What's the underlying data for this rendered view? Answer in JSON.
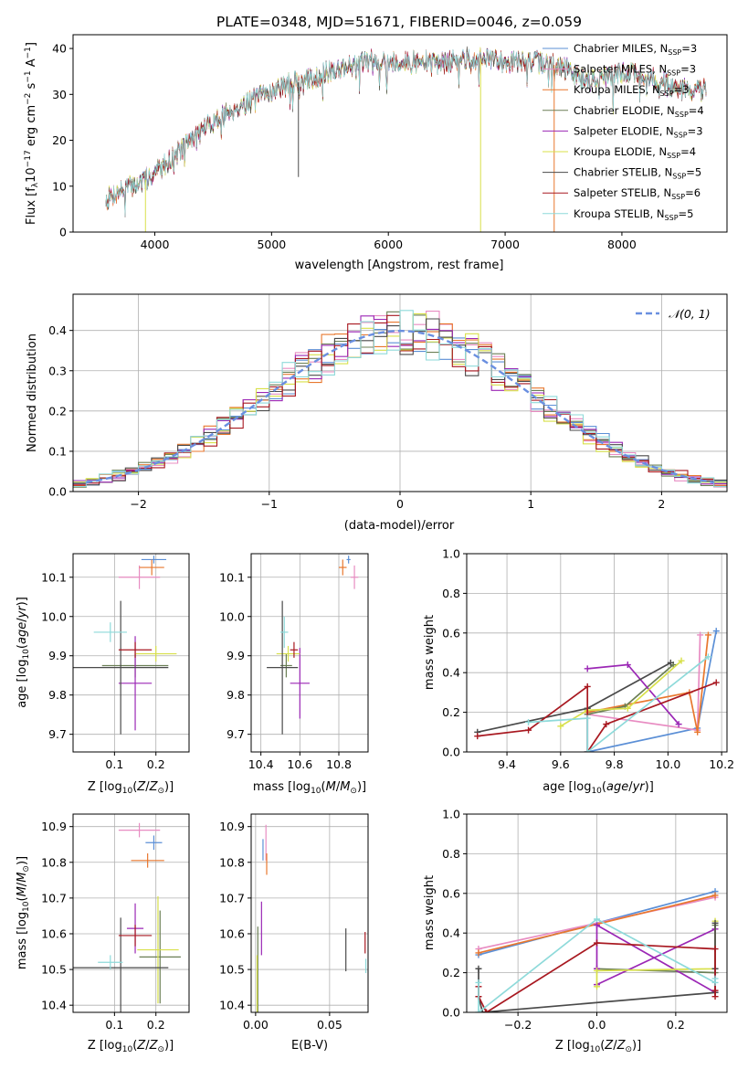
{
  "title": "PLATE=0348, MJD=51671, FIBERID=0046, z=0.059",
  "colors": {
    "chabrier_miles": "#5b8fd6",
    "salpeter_miles": "#e88cc2",
    "kroupa_miles": "#e8772e",
    "chabrier_elodie": "#6b7f55",
    "salpeter_elodie": "#9b27b5",
    "kroupa_elodie": "#d8e04a",
    "chabrier_stelib": "#4a4a4a",
    "salpeter_stelib": "#a81820",
    "kroupa_stelib": "#8edada",
    "normal": "#6a8fe0"
  },
  "legend": {
    "spectrum": [
      {
        "key": "chabrier_miles",
        "prefix": "Chabrier MILES, N",
        "sub": "SSP",
        "value": "=3"
      },
      {
        "key": "salpeter_miles",
        "prefix": "Salpeter MILES, N",
        "sub": "SSP",
        "value": "=3"
      },
      {
        "key": "kroupa_miles",
        "prefix": "Kroupa MILES, N",
        "sub": "SSP",
        "value": "=3"
      },
      {
        "key": "chabrier_elodie",
        "prefix": "Chabrier ELODIE, N",
        "sub": "SSP",
        "value": "=4"
      },
      {
        "key": "salpeter_elodie",
        "prefix": "Salpeter ELODIE, N",
        "sub": "SSP",
        "value": "=3"
      },
      {
        "key": "kroupa_elodie",
        "prefix": "Kroupa ELODIE, N",
        "sub": "SSP",
        "value": "=4"
      },
      {
        "key": "chabrier_stelib",
        "prefix": "Chabrier STELIB, N",
        "sub": "SSP",
        "value": "=5"
      },
      {
        "key": "salpeter_stelib",
        "prefix": "Salpeter STELIB, N",
        "sub": "SSP",
        "value": "=6"
      },
      {
        "key": "kroupa_stelib",
        "prefix": "Kroupa STELIB, N",
        "sub": "SSP",
        "value": "=5"
      }
    ],
    "normal": "𝒩(0, 1)"
  },
  "chart_data": [
    {
      "id": "spectrum",
      "type": "line",
      "xlabel": "wavelength [Angstrom, rest frame]",
      "ylabel": "Flux [f_λ 10^-17 erg cm^-2 s^-1 A^-1]",
      "xlim": [
        3300,
        8900
      ],
      "ylim": [
        0,
        43
      ],
      "xticks": [
        4000,
        5000,
        6000,
        7000,
        8000
      ],
      "yticks": [
        0,
        10,
        20,
        30,
        40
      ],
      "continuum": {
        "x": [
          3580,
          3700,
          3900,
          4100,
          4300,
          4500,
          4700,
          4900,
          5100,
          5300,
          5500,
          5700,
          5900,
          6100,
          6300,
          6500,
          6700,
          6900,
          7100,
          7300,
          7500,
          7700,
          7900,
          8100,
          8300,
          8500,
          8700
        ],
        "y": [
          7,
          9,
          11,
          15,
          20,
          24,
          27,
          29.5,
          32,
          33,
          35,
          36.5,
          37.5,
          37,
          37,
          37,
          38,
          37.5,
          37,
          37,
          36,
          33,
          34,
          35,
          33,
          31,
          31
        ]
      },
      "grid": false
    },
    {
      "id": "residuals",
      "type": "histogram",
      "xlabel": "(data-model)/error",
      "ylabel": "Normed distribution",
      "xlim": [
        -2.5,
        2.5
      ],
      "ylim": [
        0,
        0.49
      ],
      "xticks": [
        -2,
        -1,
        0,
        1,
        2
      ],
      "yticks": [
        0.0,
        0.1,
        0.2,
        0.3,
        0.4
      ],
      "bin_width": 0.1,
      "reference": "normal(0,1)",
      "grid": true,
      "legend": "top-right"
    },
    {
      "id": "age_vs_Z",
      "type": "scatter",
      "xlabel": "Z [log10(Z/Z⊙)]",
      "ylabel": "age  [log10(age/yr)]",
      "xlim": [
        0.0,
        0.28
      ],
      "ylim": [
        9.655,
        10.16
      ],
      "xticks": [
        0.1,
        0.2
      ],
      "yticks": [
        9.7,
        9.8,
        9.9,
        10.0,
        10.1
      ],
      "points": [
        {
          "key": "chabrier_miles",
          "x": 0.195,
          "y": 10.145,
          "dx": 0.03,
          "dy": 0.01
        },
        {
          "key": "salpeter_miles",
          "x": 0.16,
          "y": 10.1,
          "dx": 0.05,
          "dy": 0.03
        },
        {
          "key": "kroupa_miles",
          "x": 0.19,
          "y": 10.125,
          "dx": 0.03,
          "dy": 0.02
        },
        {
          "key": "chabrier_elodie",
          "x": 0.15,
          "y": 9.875,
          "dx": 0.08,
          "dy": 0.03
        },
        {
          "key": "salpeter_elodie",
          "x": 0.15,
          "y": 9.83,
          "dx": 0.04,
          "dy": 0.12
        },
        {
          "key": "kroupa_elodie",
          "x": 0.2,
          "y": 9.905,
          "dx": 0.05,
          "dy": 0.02
        },
        {
          "key": "chabrier_stelib",
          "x": 0.115,
          "y": 9.87,
          "dx": 0.115,
          "dy": 0.17
        },
        {
          "key": "salpeter_stelib",
          "x": 0.15,
          "y": 9.915,
          "dx": 0.04,
          "dy": 0.02
        },
        {
          "key": "kroupa_stelib",
          "x": 0.09,
          "y": 9.96,
          "dx": 0.04,
          "dy": 0.025
        }
      ]
    },
    {
      "id": "age_vs_mass",
      "type": "scatter",
      "xlabel": "mass [log10(M/M⊙)]",
      "ylabel": "",
      "xlim": [
        10.35,
        10.95
      ],
      "ylim": [
        9.655,
        10.16
      ],
      "xticks": [
        10.4,
        10.6,
        10.8
      ],
      "yticks": [
        9.7,
        9.8,
        9.9,
        10.0,
        10.1
      ],
      "points": [
        {
          "key": "chabrier_miles",
          "x": 10.85,
          "y": 10.145,
          "dx": 0.01,
          "dy": 0.01
        },
        {
          "key": "salpeter_miles",
          "x": 10.88,
          "y": 10.1,
          "dx": 0.02,
          "dy": 0.03
        },
        {
          "key": "kroupa_miles",
          "x": 10.82,
          "y": 10.125,
          "dx": 0.02,
          "dy": 0.02
        },
        {
          "key": "chabrier_elodie",
          "x": 10.53,
          "y": 9.875,
          "dx": 0.03,
          "dy": 0.03
        },
        {
          "key": "salpeter_elodie",
          "x": 10.6,
          "y": 9.83,
          "dx": 0.05,
          "dy": 0.09
        },
        {
          "key": "kroupa_elodie",
          "x": 10.54,
          "y": 9.905,
          "dx": 0.06,
          "dy": 0.02
        },
        {
          "key": "chabrier_stelib",
          "x": 10.51,
          "y": 9.87,
          "dx": 0.08,
          "dy": 0.17
        },
        {
          "key": "salpeter_stelib",
          "x": 10.57,
          "y": 9.915,
          "dx": 0.02,
          "dy": 0.02
        },
        {
          "key": "kroupa_stelib",
          "x": 10.52,
          "y": 9.96,
          "dx": 0.02,
          "dy": 0.04
        }
      ]
    },
    {
      "id": "weight_vs_age",
      "type": "line",
      "xlabel": "age  [log10(age/yr)]",
      "ylabel": "mass weight",
      "xlim": [
        9.25,
        10.22
      ],
      "ylim": [
        0,
        1.0
      ],
      "xticks": [
        9.4,
        9.6,
        9.8,
        10.0,
        10.2
      ],
      "yticks": [
        0.0,
        0.2,
        0.4,
        0.6,
        0.8,
        1.0
      ],
      "series": [
        {
          "key": "chabrier_miles",
          "x": [
            9.7,
            9.7,
            10.11,
            10.18
          ],
          "y": [
            0.21,
            0.0,
            0.12,
            0.61
          ]
        },
        {
          "key": "salpeter_miles",
          "x": [
            9.7,
            10.11,
            10.12
          ],
          "y": [
            0.19,
            0.11,
            0.59
          ]
        },
        {
          "key": "kroupa_miles",
          "x": [
            9.7,
            10.08,
            10.11,
            10.15
          ],
          "y": [
            0.2,
            0.3,
            0.1,
            0.59
          ]
        },
        {
          "key": "chabrier_elodie",
          "x": [
            9.7,
            9.84,
            10.02
          ],
          "y": [
            0.19,
            0.23,
            0.44
          ]
        },
        {
          "key": "salpeter_elodie",
          "x": [
            9.7,
            9.85,
            10.04
          ],
          "y": [
            0.42,
            0.44,
            0.14
          ]
        },
        {
          "key": "kroupa_elodie",
          "x": [
            9.6,
            9.7,
            9.85,
            10.05
          ],
          "y": [
            0.13,
            0.21,
            0.22,
            0.46
          ]
        },
        {
          "key": "chabrier_stelib",
          "x": [
            9.29,
            9.7,
            10.01
          ],
          "y": [
            0.1,
            0.22,
            0.45
          ]
        },
        {
          "key": "salpeter_stelib",
          "x": [
            9.29,
            9.48,
            9.7,
            9.7,
            9.77,
            10.18
          ],
          "y": [
            0.08,
            0.11,
            0.33,
            0.0,
            0.14,
            0.35
          ]
        },
        {
          "key": "kroupa_stelib",
          "x": [
            9.48,
            9.7,
            9.7,
            10.15
          ],
          "y": [
            0.15,
            0.17,
            0.0,
            0.48
          ]
        }
      ]
    },
    {
      "id": "mass_vs_Z",
      "type": "scatter",
      "xlabel": "Z [log10(Z/Z⊙)]",
      "ylabel": "mass [log10(M/M⊙)]",
      "xlim": [
        0.0,
        0.28
      ],
      "ylim": [
        10.38,
        10.935
      ],
      "xticks": [
        0.1,
        0.2
      ],
      "yticks": [
        10.4,
        10.5,
        10.6,
        10.7,
        10.8,
        10.9
      ],
      "points": [
        {
          "key": "chabrier_miles",
          "x": 0.195,
          "y": 10.855,
          "dx": 0.02,
          "dy": 0.02
        },
        {
          "key": "salpeter_miles",
          "x": 0.16,
          "y": 10.89,
          "dx": 0.05,
          "dy": 0.02
        },
        {
          "key": "kroupa_miles",
          "x": 0.18,
          "y": 10.805,
          "dx": 0.04,
          "dy": 0.02
        },
        {
          "key": "chabrier_elodie",
          "x": 0.21,
          "y": 10.535,
          "dx": 0.05,
          "dy": 0.13
        },
        {
          "key": "salpeter_elodie",
          "x": 0.15,
          "y": 10.615,
          "dx": 0.02,
          "dy": 0.07
        },
        {
          "key": "kroupa_elodie",
          "x": 0.205,
          "y": 10.555,
          "dx": 0.05,
          "dy": 0.15
        },
        {
          "key": "chabrier_stelib",
          "x": 0.115,
          "y": 10.505,
          "dx": 0.115,
          "dy": 0.14
        },
        {
          "key": "salpeter_stelib",
          "x": 0.15,
          "y": 10.595,
          "dx": 0.04,
          "dy": 0.03
        },
        {
          "key": "kroupa_stelib",
          "x": 0.09,
          "y": 10.52,
          "dx": 0.03,
          "dy": 0.02
        }
      ]
    },
    {
      "id": "mass_vs_ebv",
      "type": "scatter",
      "xlabel": "E(B-V)",
      "ylabel": "",
      "xlim": [
        -0.003,
        0.076
      ],
      "ylim": [
        10.38,
        10.935
      ],
      "xticks": [
        0.0,
        0.05
      ],
      "yticks": [
        10.4,
        10.5,
        10.6,
        10.7,
        10.8,
        10.9
      ],
      "points": [
        {
          "key": "chabrier_miles",
          "x": 0.005,
          "y": 10.835,
          "dx": 0.0,
          "dy": 0.03
        },
        {
          "key": "salpeter_miles",
          "x": 0.007,
          "y": 10.855,
          "dx": 0.0,
          "dy": 0.05
        },
        {
          "key": "kroupa_miles",
          "x": 0.0075,
          "y": 10.795,
          "dx": 0.0,
          "dy": 0.03
        },
        {
          "key": "chabrier_elodie",
          "x": 0.0015,
          "y": 10.5,
          "dx": 0.0,
          "dy": 0.12
        },
        {
          "key": "salpeter_elodie",
          "x": 0.004,
          "y": 10.615,
          "dx": 0.0,
          "dy": 0.075
        },
        {
          "key": "kroupa_elodie",
          "x": 0.001,
          "y": 10.46,
          "dx": 0.0,
          "dy": 0.08
        },
        {
          "key": "chabrier_stelib",
          "x": 0.061,
          "y": 10.555,
          "dx": 0.0,
          "dy": 0.06
        },
        {
          "key": "salpeter_stelib",
          "x": 0.074,
          "y": 10.575,
          "dx": 0.0,
          "dy": 0.03
        },
        {
          "key": "kroupa_stelib",
          "x": 0.0745,
          "y": 10.51,
          "dx": 0.0,
          "dy": 0.02
        }
      ]
    },
    {
      "id": "weight_vs_Z",
      "type": "line",
      "xlabel": "Z [log10(Z/Z⊙)]",
      "ylabel": "mass weight",
      "xlim": [
        -0.33,
        0.33
      ],
      "ylim": [
        0,
        1.0
      ],
      "xticks": [
        -0.2,
        0.0,
        0.2
      ],
      "yticks": [
        0.0,
        0.2,
        0.4,
        0.6,
        0.8,
        1.0
      ],
      "series": [
        {
          "key": "chabrier_miles",
          "x": [
            -0.3,
            0.3
          ],
          "y": [
            0.29,
            0.61
          ]
        },
        {
          "key": "salpeter_miles",
          "x": [
            -0.3,
            0.3
          ],
          "y": [
            0.32,
            0.58
          ]
        },
        {
          "key": "kroupa_miles",
          "x": [
            -0.3,
            0.3
          ],
          "y": [
            0.3,
            0.59
          ]
        },
        {
          "key": "chabrier_elodie",
          "x": [
            0.0,
            0.3,
            0.3
          ],
          "y": [
            0.22,
            0.2,
            0.44
          ]
        },
        {
          "key": "salpeter_elodie",
          "x": [
            0.0,
            0.3,
            0.3,
            0.0,
            0.0
          ],
          "y": [
            0.14,
            0.42,
            0.1,
            0.44,
            0.22
          ]
        },
        {
          "key": "kroupa_elodie",
          "x": [
            0.0,
            0.0,
            0.3,
            0.3
          ],
          "y": [
            0.13,
            0.21,
            0.22,
            0.46
          ]
        },
        {
          "key": "chabrier_stelib",
          "x": [
            -0.3,
            -0.3,
            -0.29,
            0.3,
            0.3,
            0.3
          ],
          "y": [
            0.22,
            0.08,
            0.0,
            0.1,
            0.45,
            0.22
          ]
        },
        {
          "key": "salpeter_stelib",
          "x": [
            -0.3,
            -0.3,
            -0.28,
            0.0,
            0.3,
            0.3,
            0.3
          ],
          "y": [
            0.13,
            0.08,
            0.0,
            0.35,
            0.32,
            0.11,
            0.08
          ]
        },
        {
          "key": "kroupa_stelib",
          "x": [
            -0.3,
            -0.3,
            0.0,
            0.3,
            0.3
          ],
          "y": [
            0.15,
            0.0,
            0.47,
            0.15,
            0.17
          ]
        }
      ]
    }
  ]
}
